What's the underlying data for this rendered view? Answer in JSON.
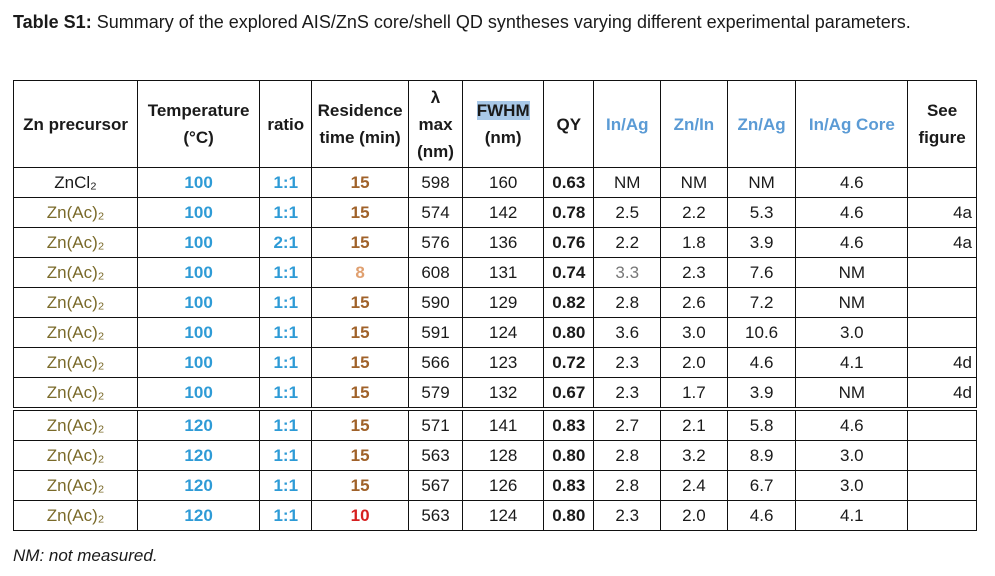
{
  "caption": {
    "label": "Table S1:",
    "text": " Summary of the explored AIS/ZnS core/shell QD syntheses varying different experimental parameters."
  },
  "headers": {
    "zn": "Zn precursor",
    "temp": "Temperature (°C)",
    "ratio": "ratio",
    "res": "Residence time (min)",
    "lambda": "λ max (nm)",
    "fwhm": "FWHM",
    "fwhm_unit": "(nm)",
    "qy": "QY",
    "inag": "In/Ag",
    "znin": "Zn/In",
    "znag": "Zn/Ag",
    "inagcore": "In/Ag Core",
    "fig": "See figure"
  },
  "rows": [
    {
      "zn": "ZnCl₂",
      "temp": "100",
      "ratio": "1:1",
      "res": "15",
      "lambda": "598",
      "fwhm": "160",
      "qy": "0.63",
      "inag": "NM",
      "znin": "NM",
      "znag": "NM",
      "core": "4.6",
      "fig": ""
    },
    {
      "zn": "Zn(Ac)₂",
      "temp": "100",
      "ratio": "1:1",
      "res": "15",
      "lambda": "574",
      "fwhm": "142",
      "qy": "0.78",
      "inag": "2.5",
      "znin": "2.2",
      "znag": "5.3",
      "core": "4.6",
      "fig": "4a"
    },
    {
      "zn": "Zn(Ac)₂",
      "temp": "100",
      "ratio": "2:1",
      "res": "15",
      "lambda": "576",
      "fwhm": "136",
      "qy": "0.76",
      "inag": "2.2",
      "znin": "1.8",
      "znag": "3.9",
      "core": "4.6",
      "fig": "4a"
    },
    {
      "zn": "Zn(Ac)₂",
      "temp": "100",
      "ratio": "1:1",
      "res": "8",
      "lambda": "608",
      "fwhm": "131",
      "qy": "0.74",
      "inag": "3.3",
      "znin": "2.3",
      "znag": "7.6",
      "core": "NM",
      "fig": ""
    },
    {
      "zn": "Zn(Ac)₂",
      "temp": "100",
      "ratio": "1:1",
      "res": "15",
      "lambda": "590",
      "fwhm": "129",
      "qy": "0.82",
      "inag": "2.8",
      "znin": "2.6",
      "znag": "7.2",
      "core": "NM",
      "fig": ""
    },
    {
      "zn": "Zn(Ac)₂",
      "temp": "100",
      "ratio": "1:1",
      "res": "15",
      "lambda": "591",
      "fwhm": "124",
      "qy": "0.80",
      "inag": "3.6",
      "znin": "3.0",
      "znag": "10.6",
      "core": "3.0",
      "fig": ""
    },
    {
      "zn": "Zn(Ac)₂",
      "temp": "100",
      "ratio": "1:1",
      "res": "15",
      "lambda": "566",
      "fwhm": "123",
      "qy": "0.72",
      "inag": "2.3",
      "znin": "2.0",
      "znag": "4.6",
      "core": "4.1",
      "fig": "4d"
    },
    {
      "zn": "Zn(Ac)₂",
      "temp": "100",
      "ratio": "1:1",
      "res": "15",
      "lambda": "579",
      "fwhm": "132",
      "qy": "0.67",
      "inag": "2.3",
      "znin": "1.7",
      "znag": "3.9",
      "core": "NM",
      "fig": "4d"
    },
    {
      "zn": "Zn(Ac)₂",
      "temp": "120",
      "ratio": "1:1",
      "res": "15",
      "lambda": "571",
      "fwhm": "141",
      "qy": "0.83",
      "inag": "2.7",
      "znin": "2.1",
      "znag": "5.8",
      "core": "4.6",
      "fig": ""
    },
    {
      "zn": "Zn(Ac)₂",
      "temp": "120",
      "ratio": "1:1",
      "res": "15",
      "lambda": "563",
      "fwhm": "128",
      "qy": "0.80",
      "inag": "2.8",
      "znin": "3.2",
      "znag": "8.9",
      "core": "3.0",
      "fig": ""
    },
    {
      "zn": "Zn(Ac)₂",
      "temp": "120",
      "ratio": "1:1",
      "res": "15",
      "lambda": "567",
      "fwhm": "126",
      "qy": "0.83",
      "inag": "2.8",
      "znin": "2.4",
      "znag": "6.7",
      "core": "3.0",
      "fig": ""
    },
    {
      "zn": "Zn(Ac)₂",
      "temp": "120",
      "ratio": "1:1",
      "res": "10",
      "lambda": "563",
      "fwhm": "124",
      "qy": "0.80",
      "inag": "2.3",
      "znin": "2.0",
      "znag": "4.6",
      "core": "4.1",
      "fig": ""
    }
  ],
  "note": "NM: not measured."
}
